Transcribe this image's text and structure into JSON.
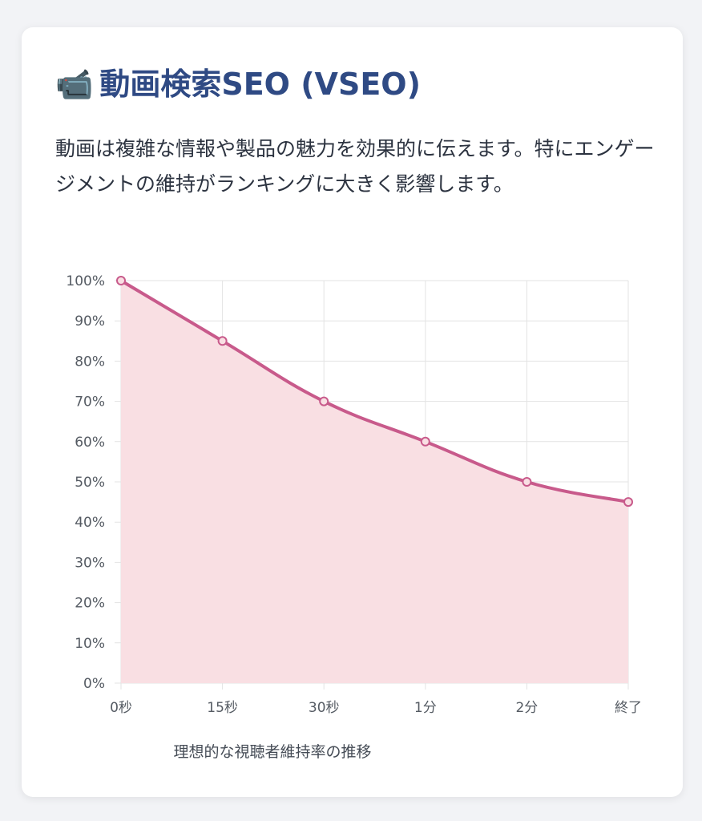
{
  "card": {
    "title_icon": "📹",
    "title_icon_name": "video-camera-icon",
    "title": "動画検索SEO (VSEO)",
    "description": "動画は複雑な情報や製品の魅力を効果的に伝えます。特にエンゲージメントの維持がランキングに大きく影響します。"
  },
  "colors": {
    "title": "#2f4a84",
    "line": "#c85a8b",
    "fill": "#f9dfe3",
    "grid": "#e3e3e3"
  },
  "chart_data": {
    "type": "area",
    "categories": [
      "0秒",
      "15秒",
      "30秒",
      "1分",
      "2分",
      "終了"
    ],
    "values": [
      100,
      85,
      70,
      60,
      50,
      45
    ],
    "xlabel": "理想的な視聴者維持率の推移",
    "ylabel": "",
    "ylim": [
      0,
      100
    ],
    "y_ticks": [
      "0%",
      "10%",
      "20%",
      "30%",
      "40%",
      "50%",
      "60%",
      "70%",
      "80%",
      "90%",
      "100%"
    ],
    "grid": true,
    "legend": "none"
  }
}
